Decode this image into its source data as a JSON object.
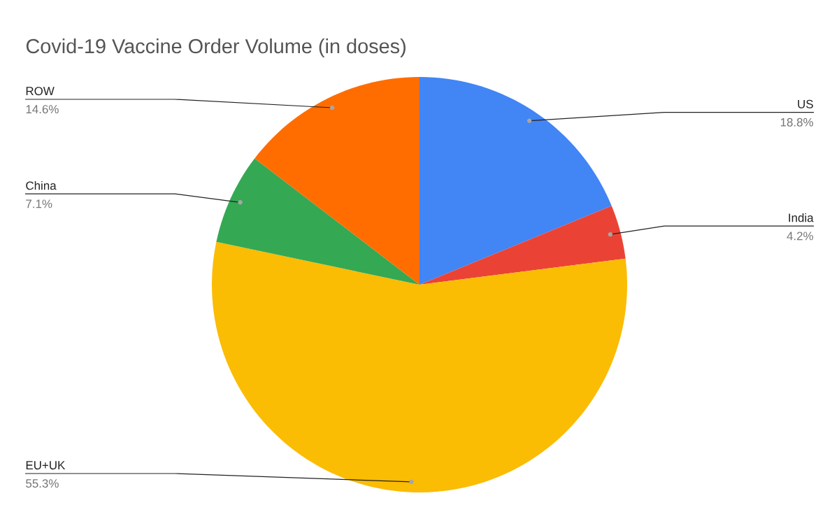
{
  "chart_data": {
    "type": "pie",
    "title": "Covid-19 Vaccine Order Volume (in doses)",
    "categories": [
      "US",
      "India",
      "EU+UK",
      "China",
      "ROW"
    ],
    "values": [
      18.8,
      4.2,
      55.3,
      7.1,
      14.6
    ],
    "value_labels": [
      "18.8%",
      "4.2%",
      "55.3%",
      "7.1%",
      "14.6%"
    ],
    "colors": [
      "#4285f4",
      "#ea4335",
      "#fbbc04",
      "#34a853",
      "#ff6d01"
    ]
  }
}
